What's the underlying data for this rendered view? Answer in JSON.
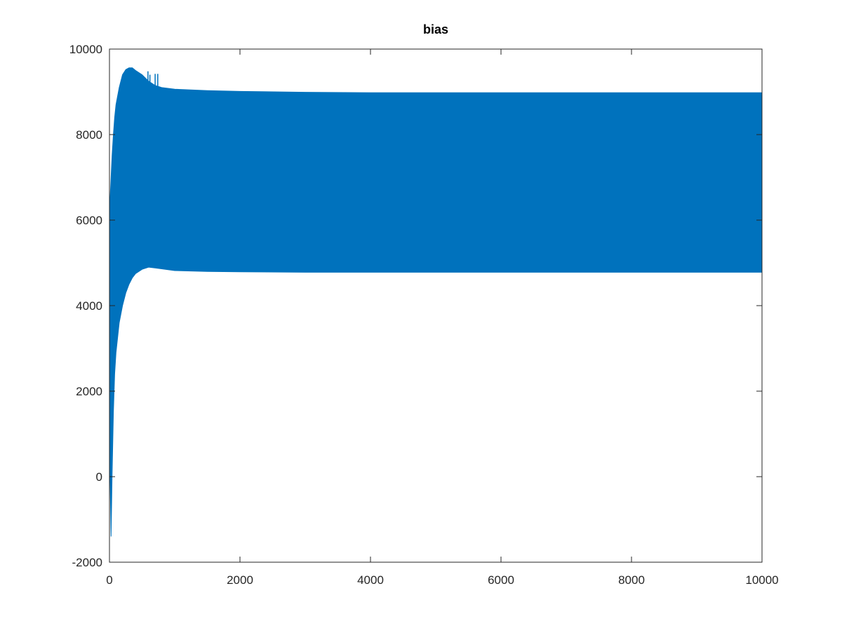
{
  "chart_data": {
    "type": "area",
    "title": "bias",
    "xlabel": "",
    "ylabel": "",
    "xlim": [
      0,
      10000
    ],
    "ylim": [
      -2000,
      10000
    ],
    "xticks": [
      0,
      2000,
      4000,
      6000,
      8000,
      10000
    ],
    "yticks": [
      -2000,
      0,
      2000,
      4000,
      6000,
      8000,
      10000
    ],
    "grid": false,
    "series_color": "#0072bd",
    "series": [
      {
        "description": "dense oscillating signal shown as filled envelope",
        "x": [
          0,
          10,
          25,
          40,
          60,
          80,
          100,
          150,
          200,
          250,
          300,
          350,
          400,
          500,
          600,
          700,
          800,
          1000,
          1500,
          2000,
          3000,
          4000,
          6000,
          8000,
          10000
        ],
        "upper": [
          6300,
          6500,
          7000,
          7500,
          8000,
          8400,
          8700,
          9100,
          9400,
          9520,
          9560,
          9560,
          9500,
          9400,
          9250,
          9150,
          9100,
          9060,
          9030,
          9010,
          8990,
          8980,
          8980,
          8980,
          8980
        ],
        "lower": [
          5000,
          0,
          -1400,
          0,
          1500,
          2400,
          2900,
          3600,
          4000,
          4300,
          4500,
          4650,
          4750,
          4850,
          4900,
          4880,
          4860,
          4820,
          4800,
          4790,
          4780,
          4780,
          4780,
          4780,
          4780
        ]
      }
    ],
    "spikes": [
      {
        "x": 590,
        "y": 9480
      },
      {
        "x": 620,
        "y": 9400
      },
      {
        "x": 700,
        "y": 9420
      },
      {
        "x": 740,
        "y": 9420
      }
    ]
  }
}
